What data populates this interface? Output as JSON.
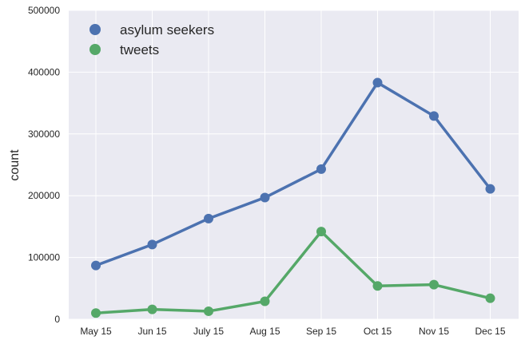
{
  "chart_data": {
    "type": "line",
    "title": "",
    "xlabel": "",
    "ylabel": "count",
    "categories": [
      "May 15",
      "Jun 15",
      "July 15",
      "Aug 15",
      "Sep 15",
      "Oct 15",
      "Nov 15",
      "Dec 15"
    ],
    "ylim": [
      0,
      500000
    ],
    "yticks": [
      "0",
      "100000",
      "200000",
      "300000",
      "400000",
      "500000"
    ],
    "grid": true,
    "legend_position": "top-left",
    "series": [
      {
        "name": "asylum seekers",
        "color": "#4C72B0",
        "values": [
          87000,
          121000,
          163000,
          197000,
          243000,
          383000,
          329000,
          211000
        ]
      },
      {
        "name": "tweets",
        "color": "#55A868",
        "values": [
          10000,
          16000,
          13000,
          29000,
          142000,
          54000,
          56000,
          34000
        ]
      }
    ]
  }
}
